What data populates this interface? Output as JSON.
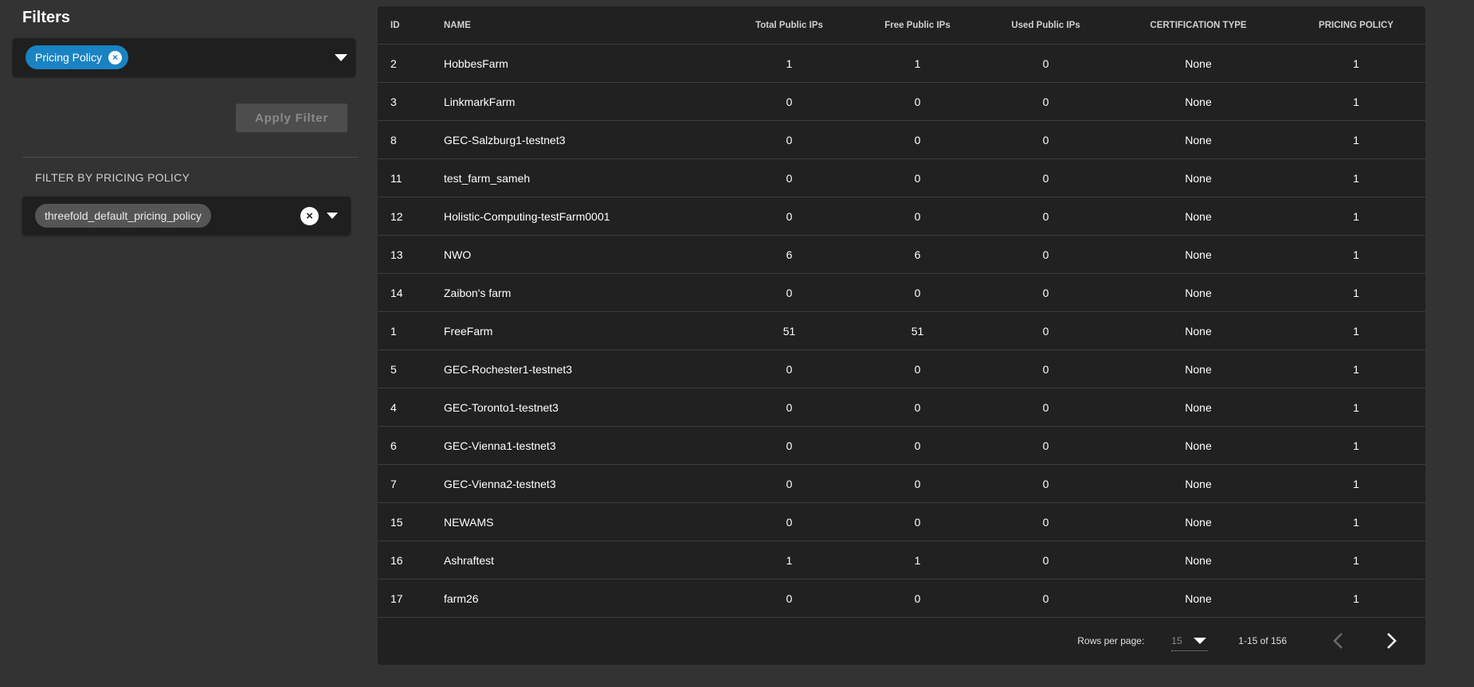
{
  "sidebar": {
    "title": "Filters",
    "selected_filter": "Pricing Policy",
    "apply_label": "Apply Filter",
    "section_title": "FILTER BY PRICING POLICY",
    "policy_value": "threefold_default_pricing_policy"
  },
  "table": {
    "headers": [
      "ID",
      "NAME",
      "Total Public IPs",
      "Free Public IPs",
      "Used Public IPs",
      "CERTIFICATION TYPE",
      "PRICING POLICY"
    ],
    "rows": [
      [
        "2",
        "HobbesFarm",
        "1",
        "1",
        "0",
        "None",
        "1"
      ],
      [
        "3",
        "LinkmarkFarm",
        "0",
        "0",
        "0",
        "None",
        "1"
      ],
      [
        "8",
        "GEC-Salzburg1-testnet3",
        "0",
        "0",
        "0",
        "None",
        "1"
      ],
      [
        "11",
        "test_farm_sameh",
        "0",
        "0",
        "0",
        "None",
        "1"
      ],
      [
        "12",
        "Holistic-Computing-testFarm0001",
        "0",
        "0",
        "0",
        "None",
        "1"
      ],
      [
        "13",
        "NWO",
        "6",
        "6",
        "0",
        "None",
        "1"
      ],
      [
        "14",
        "Zaibon's farm",
        "0",
        "0",
        "0",
        "None",
        "1"
      ],
      [
        "1",
        "FreeFarm",
        "51",
        "51",
        "0",
        "None",
        "1"
      ],
      [
        "5",
        "GEC-Rochester1-testnet3",
        "0",
        "0",
        "0",
        "None",
        "1"
      ],
      [
        "4",
        "GEC-Toronto1-testnet3",
        "0",
        "0",
        "0",
        "None",
        "1"
      ],
      [
        "6",
        "GEC-Vienna1-testnet3",
        "0",
        "0",
        "0",
        "None",
        "1"
      ],
      [
        "7",
        "GEC-Vienna2-testnet3",
        "0",
        "0",
        "0",
        "None",
        "1"
      ],
      [
        "15",
        "NEWAMS",
        "0",
        "0",
        "0",
        "None",
        "1"
      ],
      [
        "16",
        "Ashraftest",
        "1",
        "1",
        "0",
        "None",
        "1"
      ],
      [
        "17",
        "farm26",
        "0",
        "0",
        "0",
        "None",
        "1"
      ]
    ]
  },
  "pagination": {
    "rows_per_page_label": "Rows per page:",
    "rows_per_page_value": "15",
    "range_text": "1-15 of 156"
  },
  "icons": {
    "chip_close": "close-icon",
    "dropdown": "chevron-down-icon",
    "clear": "close-icon",
    "prev": "chevron-left-icon",
    "next": "chevron-right-icon"
  },
  "colors": {
    "background": "#333333",
    "panel": "#212121",
    "accent_chip": "#1a83c4",
    "neutral_chip": "#555555"
  }
}
